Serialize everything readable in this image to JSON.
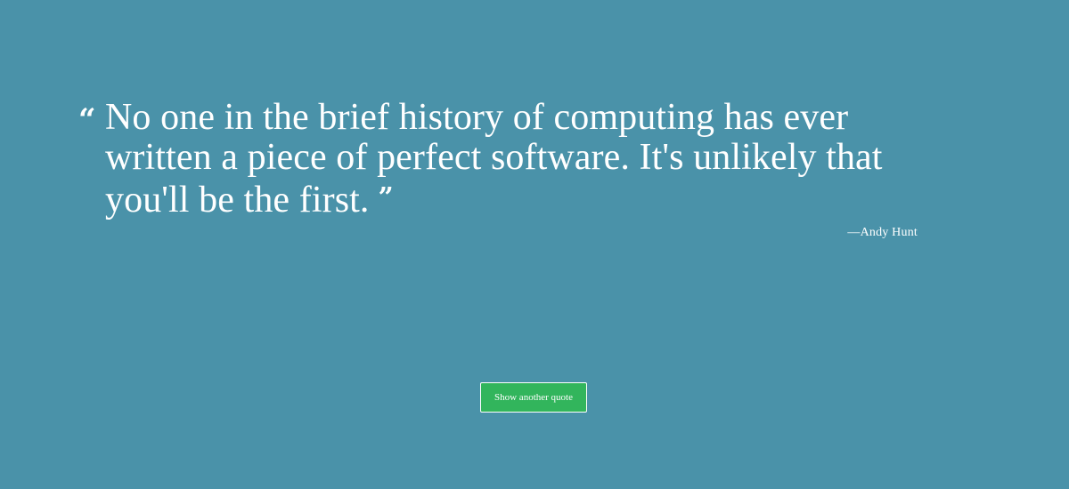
{
  "colors": {
    "background": "#4a92a9",
    "text": "#ffffff",
    "button_background": "#32b55c",
    "button_border": "#ffffff"
  },
  "quote": {
    "open_mark": "“",
    "text": "No one in the brief history of computing has ever written a piece of perfect software. It's unlikely that you'll be the first.",
    "close_mark": "”",
    "author": "—Andy Hunt"
  },
  "button": {
    "label": "Show another quote"
  }
}
